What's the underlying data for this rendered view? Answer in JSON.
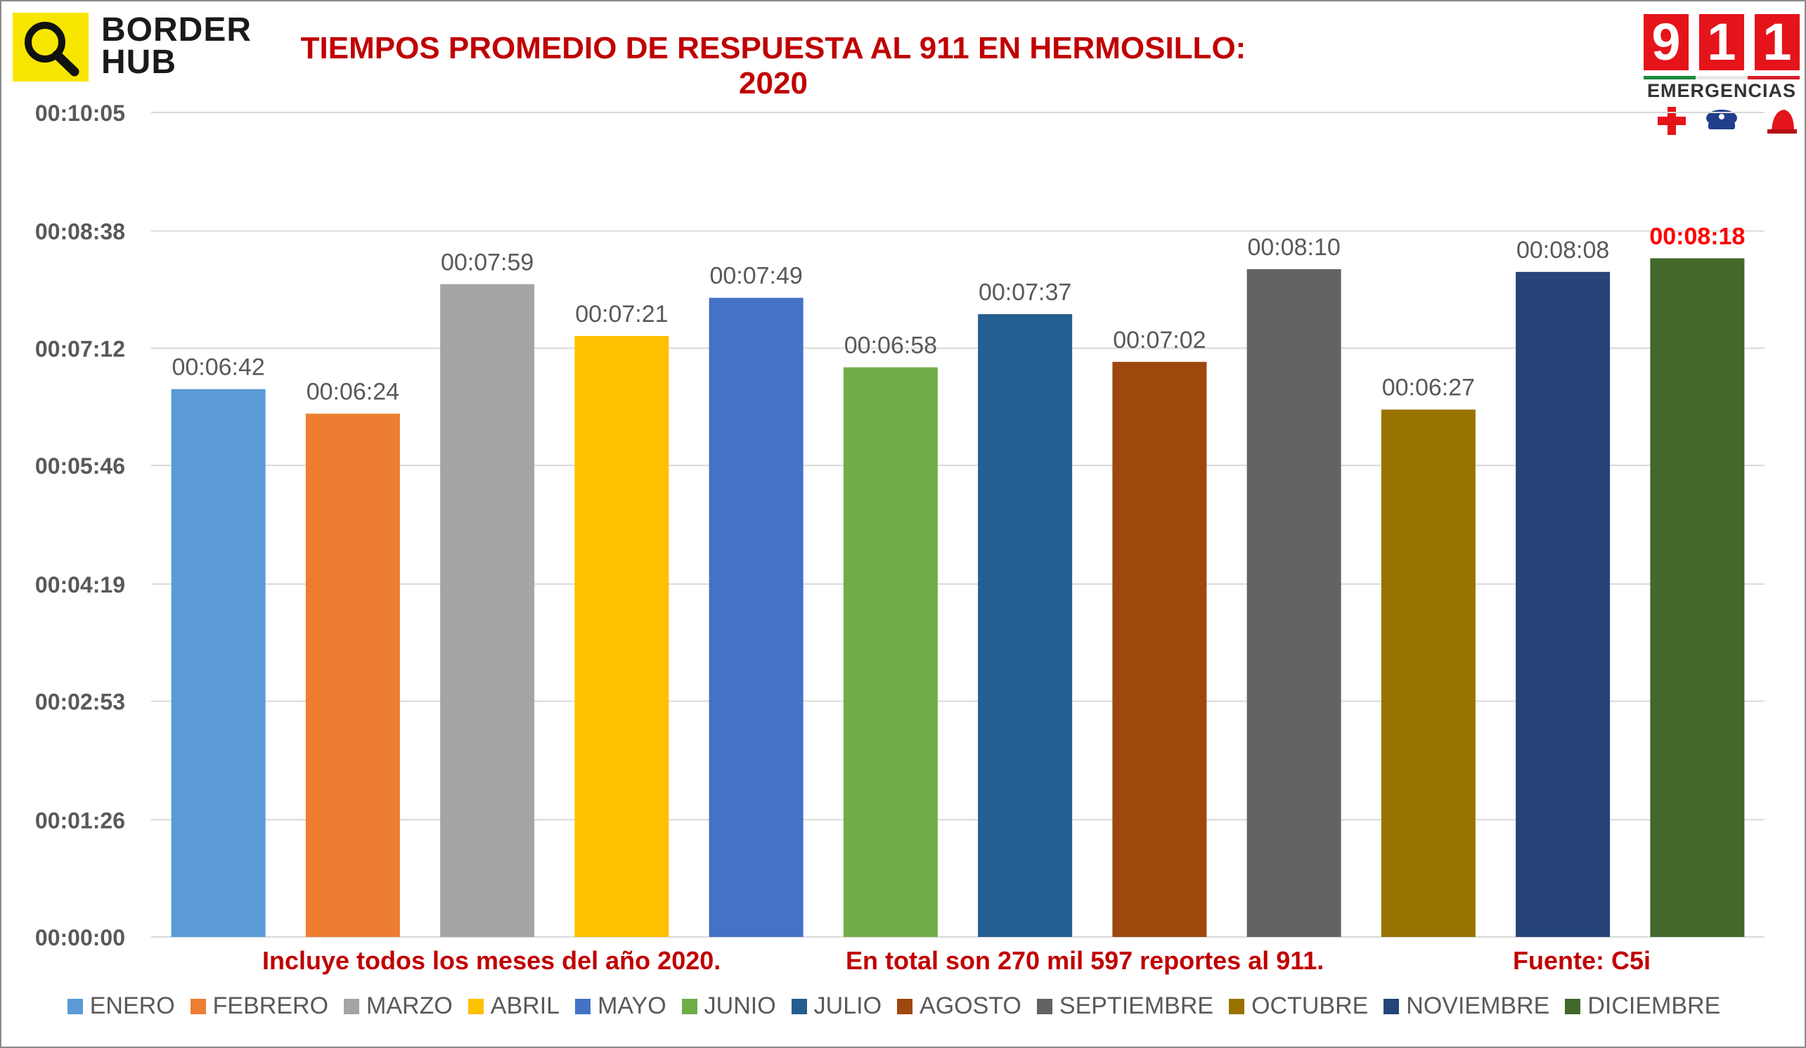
{
  "logo": {
    "line1": "BORDER",
    "line2": "HUB",
    "icon": "magnifier-icon"
  },
  "badge": {
    "digits": [
      "9",
      "1",
      "1"
    ],
    "label": "EMERGENCIAS",
    "icons": [
      "red-cross-icon",
      "police-cap-icon",
      "fire-helmet-icon"
    ]
  },
  "chart_data": {
    "type": "bar",
    "title": "TIEMPOS PROMEDIO DE RESPUESTA AL 911 EN HERMOSILLO: 2020",
    "categories": [
      "ENERO",
      "FEBRERO",
      "MARZO",
      "ABRIL",
      "MAYO",
      "JUNIO",
      "JULIO",
      "AGOSTO",
      "SEPTIEMBRE",
      "OCTUBRE",
      "NOVIEMBRE",
      "DICIEMBRE"
    ],
    "values_seconds": [
      402,
      384,
      479,
      441,
      469,
      418,
      457,
      422,
      490,
      387,
      488,
      498
    ],
    "data_labels": [
      "00:06:42",
      "00:06:24",
      "00:07:59",
      "00:07:21",
      "00:07:49",
      "00:06:58",
      "00:07:37",
      "00:07:02",
      "00:08:10",
      "00:06:27",
      "00:08:08",
      "00:08:18"
    ],
    "highlight_index": 11,
    "colors": [
      "#5b9bd5",
      "#ed7d31",
      "#a5a5a5",
      "#ffc000",
      "#4472c4",
      "#70ad47",
      "#255e91",
      "#9e480e",
      "#636363",
      "#997300",
      "#264478",
      "#43682b"
    ],
    "highlight_label_color": "#ff0000",
    "ylim_seconds": [
      0,
      605
    ],
    "y_ticks_seconds": [
      0,
      86,
      173,
      259,
      346,
      432,
      518,
      605
    ],
    "y_tick_labels": [
      "00:00:00",
      "00:01:26",
      "00:02:53",
      "00:04:19",
      "00:05:46",
      "00:07:12",
      "00:08:38",
      "00:10:05"
    ],
    "grid": true,
    "legend_position": "bottom"
  },
  "notes": {
    "left": "Incluye todos los meses del año 2020.",
    "center": "En total son 270 mil 597 reportes al 911.",
    "right": "Fuente: C5i"
  },
  "colors": {
    "title": "#c00000",
    "notes": "#c00000",
    "grid": "#d9d9d9",
    "axis_text": "#595959"
  }
}
